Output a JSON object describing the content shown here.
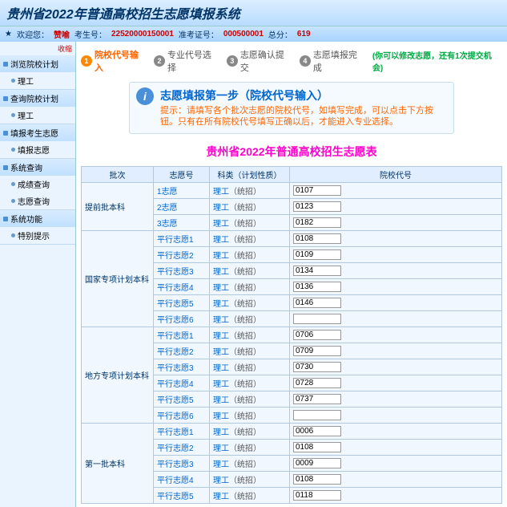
{
  "header": {
    "title": "贵州省2022年普通高校招生志愿填报系统"
  },
  "userbar": {
    "welcome": "欢迎您：",
    "name": "赞喻",
    "examno_label": "考生号：",
    "examno": "22520000150001",
    "admit_label": "准考证号：",
    "admit": "000500001",
    "total_label": "总分：",
    "total": "619"
  },
  "sidebar": {
    "collapse": "收缩",
    "groups": [
      {
        "header": "浏览院校计划",
        "items": [
          "理工"
        ]
      },
      {
        "header": "查询院校计划",
        "items": [
          "理工"
        ]
      },
      {
        "header": "填报考生志愿",
        "items": [
          "填报志愿"
        ]
      },
      {
        "header": "系统查询",
        "items": [
          "成绩查询",
          "志愿查询"
        ]
      },
      {
        "header": "系统功能",
        "items": [
          "特别提示"
        ]
      }
    ]
  },
  "steps": {
    "items": [
      {
        "num": "1",
        "label": "院校代号输入",
        "active": true
      },
      {
        "num": "2",
        "label": "专业代号选择",
        "active": false
      },
      {
        "num": "3",
        "label": "志愿确认提交",
        "active": false
      },
      {
        "num": "4",
        "label": "志愿填报完成",
        "active": false
      }
    ],
    "note": "(你可以修改志愿，还有1次提交机会)"
  },
  "infobox": {
    "title": "志愿填报第一步（院校代号输入）",
    "text": "提示：请填写各个批次志愿的院校代号，如填写完成，可以点击下方按钮。只有在所有院校代号填写正确以后，才能进入专业选择。"
  },
  "form_title": "贵州省2022年普通高校招生志愿表",
  "table": {
    "headers": [
      "批次",
      "志愿号",
      "科类（计划性质）",
      "院校代号"
    ],
    "subj_link": "理工",
    "subj_suffix": "（统招）",
    "batches": [
      {
        "name": "提前批本科",
        "rows": [
          {
            "wish": "1志愿",
            "code": "0107"
          },
          {
            "wish": "2志愿",
            "code": "0123"
          },
          {
            "wish": "3志愿",
            "code": "0182"
          }
        ]
      },
      {
        "name": "国家专项计划本科",
        "rows": [
          {
            "wish": "平行志愿1",
            "code": "0108"
          },
          {
            "wish": "平行志愿2",
            "code": "0109"
          },
          {
            "wish": "平行志愿3",
            "code": "0134"
          },
          {
            "wish": "平行志愿4",
            "code": "0136"
          },
          {
            "wish": "平行志愿5",
            "code": "0146"
          },
          {
            "wish": "平行志愿6",
            "code": ""
          }
        ]
      },
      {
        "name": "地方专项计划本科",
        "rows": [
          {
            "wish": "平行志愿1",
            "code": "0706"
          },
          {
            "wish": "平行志愿2",
            "code": "0709"
          },
          {
            "wish": "平行志愿3",
            "code": "0730"
          },
          {
            "wish": "平行志愿4",
            "code": "0728"
          },
          {
            "wish": "平行志愿5",
            "code": "0737"
          },
          {
            "wish": "平行志愿6",
            "code": ""
          }
        ]
      },
      {
        "name": "第一批本科",
        "rows": [
          {
            "wish": "平行志愿1",
            "code": "0006"
          },
          {
            "wish": "平行志愿2",
            "code": "0108"
          },
          {
            "wish": "平行志愿3",
            "code": "0009"
          },
          {
            "wish": "平行志愿4",
            "code": "0108"
          },
          {
            "wish": "平行志愿5",
            "code": "0118"
          }
        ]
      }
    ]
  }
}
